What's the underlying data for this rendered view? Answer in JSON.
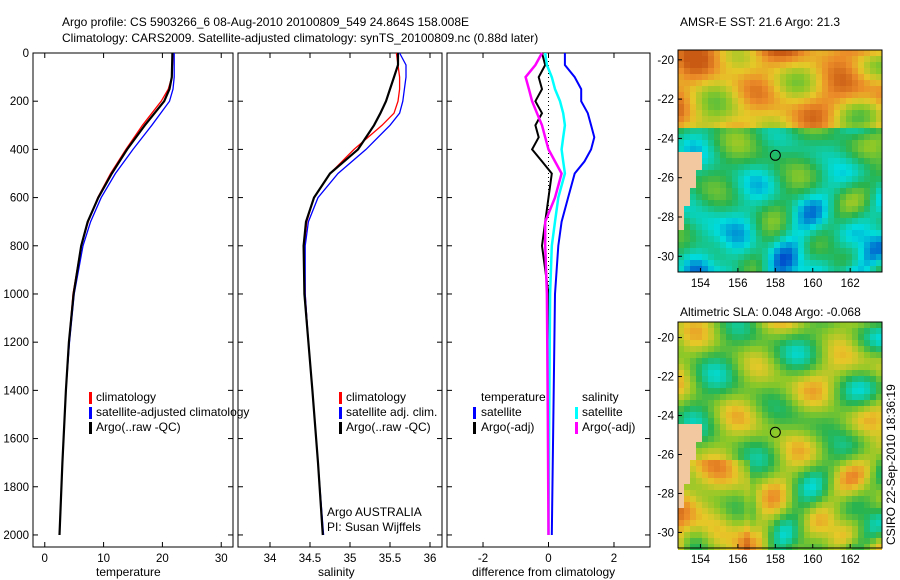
{
  "title_line1": "Argo profile: CS 5903266_6 08-Aug-2010 20100809_549 24.864S 158.008E",
  "title_line2": "Climatology: CARS2009. Satellite-adjusted climatology: synTS_20100809.nc (0.88d later)",
  "footer_stamp": "CSIRO 22-Sep-2010 18:36:19",
  "colors": {
    "climatology": "#ff0000",
    "satellite": "#0000ff",
    "argo": "#000000",
    "sal_satellite": "#00ffff",
    "sal_argo": "#ff00ff",
    "land": "#f2c8a0"
  },
  "chart_data": [
    {
      "type": "line",
      "xlabel": "temperature",
      "ylabel": "",
      "xlim": [
        -2,
        32
      ],
      "ylim": [
        2050,
        0
      ],
      "xticks": [
        "0",
        "10",
        "20",
        "30"
      ],
      "yticks": [
        "0",
        "200",
        "400",
        "600",
        "800",
        "1000",
        "1200",
        "1400",
        "1600",
        "1800",
        "2000"
      ],
      "legend": [
        "climatology",
        "satellite-adjusted climatology",
        "Argo(..raw -QC)"
      ],
      "depth": [
        0,
        100,
        150,
        200,
        300,
        400,
        500,
        600,
        700,
        800,
        1000,
        1200,
        1400,
        1700,
        2000
      ],
      "series": [
        {
          "name": "climatology",
          "values": [
            21.8,
            21.6,
            21.0,
            19.8,
            16.6,
            13.8,
            11.2,
            9.0,
            7.4,
            6.2,
            4.8,
            4.1,
            3.6,
            3.0,
            2.5
          ]
        },
        {
          "name": "satellite-adjusted climatology",
          "values": [
            22.0,
            22.0,
            21.8,
            21.2,
            18.2,
            15.0,
            12.0,
            9.6,
            7.8,
            6.5,
            5.0,
            4.2,
            3.6,
            3.0,
            2.5
          ]
        },
        {
          "name": "Argo(..raw -QC)",
          "values": [
            21.7,
            21.6,
            21.2,
            20.3,
            17.0,
            14.0,
            11.4,
            9.1,
            7.3,
            6.2,
            4.9,
            4.1,
            3.6,
            3.0,
            2.5
          ]
        }
      ]
    },
    {
      "type": "line",
      "xlabel": "salinity",
      "xlim": [
        33.6,
        36.15
      ],
      "ylim": [
        2050,
        0
      ],
      "xticks": [
        "34",
        "34.5",
        "35",
        "35.5",
        "36"
      ],
      "legend": [
        "climatology",
        "satellite adj. clim.",
        "Argo(..raw -QC)"
      ],
      "annotation": [
        "Argo AUSTRALIA",
        "PI: Susan Wijffels"
      ],
      "depth": [
        0,
        50,
        100,
        150,
        200,
        250,
        300,
        400,
        500,
        600,
        700,
        800,
        1000,
        1200,
        1400,
        1700,
        2000
      ],
      "series": [
        {
          "name": "climatology",
          "values": [
            35.58,
            35.6,
            35.62,
            35.62,
            35.6,
            35.55,
            35.4,
            35.05,
            34.75,
            34.55,
            34.46,
            34.43,
            34.44,
            34.48,
            34.53,
            34.6,
            34.66
          ]
        },
        {
          "name": "satellite adj. clim.",
          "values": [
            35.62,
            35.7,
            35.7,
            35.68,
            35.66,
            35.62,
            35.5,
            35.2,
            34.85,
            34.6,
            34.48,
            34.44,
            34.44,
            34.48,
            34.53,
            34.6,
            34.67
          ]
        },
        {
          "name": "Argo(..raw -QC)",
          "values": [
            35.6,
            35.6,
            35.55,
            35.5,
            35.45,
            35.38,
            35.3,
            35.1,
            34.75,
            34.55,
            34.45,
            34.42,
            34.43,
            34.48,
            34.53,
            34.6,
            34.66
          ]
        }
      ]
    },
    {
      "type": "line",
      "xlabel": "difference from climatology",
      "xlim": [
        -3.1,
        3.1
      ],
      "ylim": [
        2050,
        0
      ],
      "xticks": [
        "-2",
        "0",
        "2"
      ],
      "legend_temperature": {
        "title": "temperature",
        "items": [
          "satellite",
          "Argo(-adj)"
        ]
      },
      "legend_salinity": {
        "title": "salinity",
        "items": [
          "satellite",
          "Argo(-adj)"
        ]
      },
      "depth": [
        0,
        50,
        100,
        150,
        200,
        250,
        300,
        350,
        400,
        450,
        500,
        600,
        700,
        800,
        1000,
        1500,
        2000
      ],
      "series": [
        {
          "name": "temperature satellite",
          "values": [
            0.5,
            0.5,
            0.8,
            1.0,
            1.0,
            1.2,
            1.3,
            1.4,
            1.3,
            1.1,
            0.8,
            0.6,
            0.4,
            0.3,
            0.2,
            0.15,
            0.1
          ]
        },
        {
          "name": "temperature Argo(-adj)",
          "values": [
            -0.2,
            -0.1,
            -0.3,
            -0.2,
            -0.4,
            -0.2,
            -0.4,
            -0.3,
            -0.5,
            -0.2,
            0.1,
            0.0,
            -0.1,
            -0.2,
            0.0,
            0.0,
            0.0
          ]
        },
        {
          "name": "salinity satellite",
          "values": [
            -0.1,
            -0.05,
            0.1,
            0.2,
            0.35,
            0.45,
            0.5,
            0.45,
            0.4,
            0.45,
            0.5,
            0.3,
            0.2,
            0.1,
            0.05,
            0.02,
            0.0
          ]
        },
        {
          "name": "salinity Argo(-adj)",
          "values": [
            -0.2,
            -0.4,
            -0.7,
            -0.6,
            -0.5,
            -0.35,
            -0.2,
            -0.1,
            0.0,
            0.2,
            0.4,
            0.2,
            -0.1,
            -0.1,
            -0.05,
            -0.02,
            0.0
          ]
        }
      ]
    },
    {
      "type": "heatmap",
      "title": "AMSR-E SST: 21.6 Argo: 21.3",
      "xticks": [
        "154",
        "156",
        "158",
        "160",
        "162"
      ],
      "yticks": [
        "-20",
        "-22",
        "-24",
        "-26",
        "-28",
        "-30"
      ],
      "xlim": [
        152.8,
        163.7
      ],
      "ylim": [
        -30.8,
        -19.5
      ],
      "marker": [
        158.0,
        -24.86
      ]
    },
    {
      "type": "heatmap",
      "title": "Altimetric SLA: 0.048 Argo: -0.068",
      "xticks": [
        "154",
        "156",
        "158",
        "160",
        "162"
      ],
      "yticks": [
        "-20",
        "-22",
        "-24",
        "-26",
        "-28",
        "-30"
      ],
      "xlim": [
        152.8,
        163.7
      ],
      "ylim": [
        -30.8,
        -19.2
      ],
      "marker": [
        158.0,
        -24.86
      ]
    }
  ]
}
